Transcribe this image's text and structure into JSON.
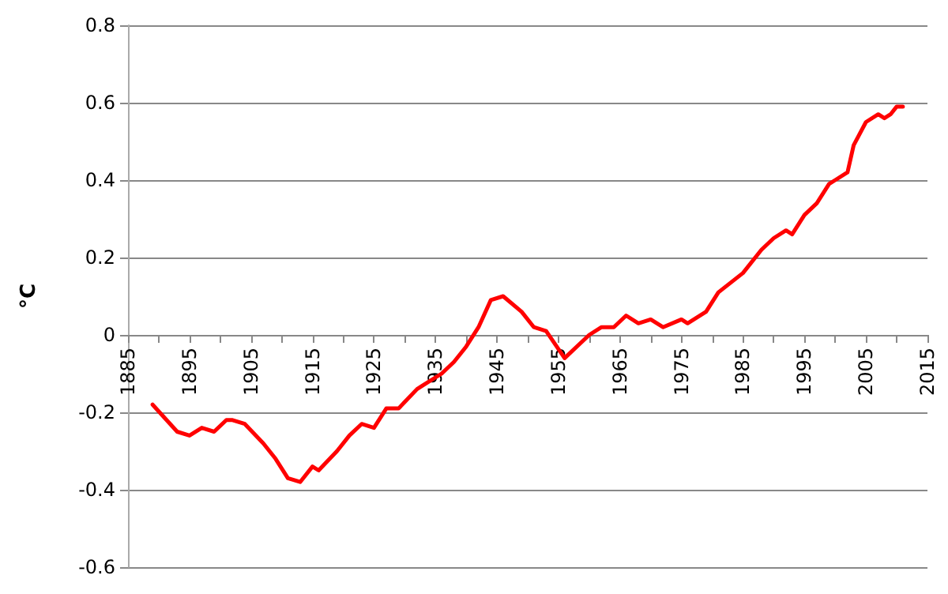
{
  "chart_data": {
    "type": "line",
    "ylabel": "°C",
    "x": [
      1889,
      1893,
      1895,
      1897,
      1899,
      1901,
      1902,
      1904,
      1907,
      1909,
      1911,
      1913,
      1915,
      1916,
      1919,
      1921,
      1923,
      1925,
      1927,
      1929,
      1932,
      1933,
      1936,
      1938,
      1940,
      1942,
      1944,
      1946,
      1949,
      1951,
      1953,
      1956,
      1960,
      1962,
      1964,
      1966,
      1968,
      1970,
      1972,
      1975,
      1976,
      1979,
      1981,
      1985,
      1988,
      1990,
      1992,
      1993,
      1995,
      1997,
      1999,
      2000,
      2002,
      2003,
      2005,
      2007,
      2008,
      2009,
      2010,
      2011
    ],
    "series": [
      {
        "color": "#ff0000",
        "values": [
          -0.18,
          -0.25,
          -0.26,
          -0.24,
          -0.25,
          -0.22,
          -0.22,
          -0.23,
          -0.28,
          -0.32,
          -0.37,
          -0.38,
          -0.34,
          -0.35,
          -0.3,
          -0.26,
          -0.23,
          -0.24,
          -0.19,
          -0.19,
          -0.14,
          -0.13,
          -0.1,
          -0.07,
          -0.03,
          0.02,
          0.09,
          0.1,
          0.06,
          0.02,
          0.01,
          -0.06,
          0.0,
          0.02,
          0.02,
          0.05,
          0.03,
          0.04,
          0.02,
          0.04,
          0.03,
          0.06,
          0.11,
          0.16,
          0.22,
          0.25,
          0.27,
          0.26,
          0.31,
          0.34,
          0.39,
          0.4,
          0.42,
          0.49,
          0.55,
          0.57,
          0.56,
          0.57,
          0.59,
          0.59
        ]
      }
    ],
    "xlim": [
      1885,
      2015
    ],
    "xticks": [
      1885,
      1895,
      1905,
      1915,
      1925,
      1935,
      1945,
      1955,
      1965,
      1975,
      1985,
      1995,
      2005,
      2015
    ],
    "ylim": [
      -0.6,
      0.8
    ],
    "yticks": [
      -0.6,
      -0.4,
      -0.2,
      0,
      0.2,
      0.4,
      0.6,
      0.8
    ],
    "grid": "y",
    "marker": "none",
    "line_style": "solid"
  }
}
